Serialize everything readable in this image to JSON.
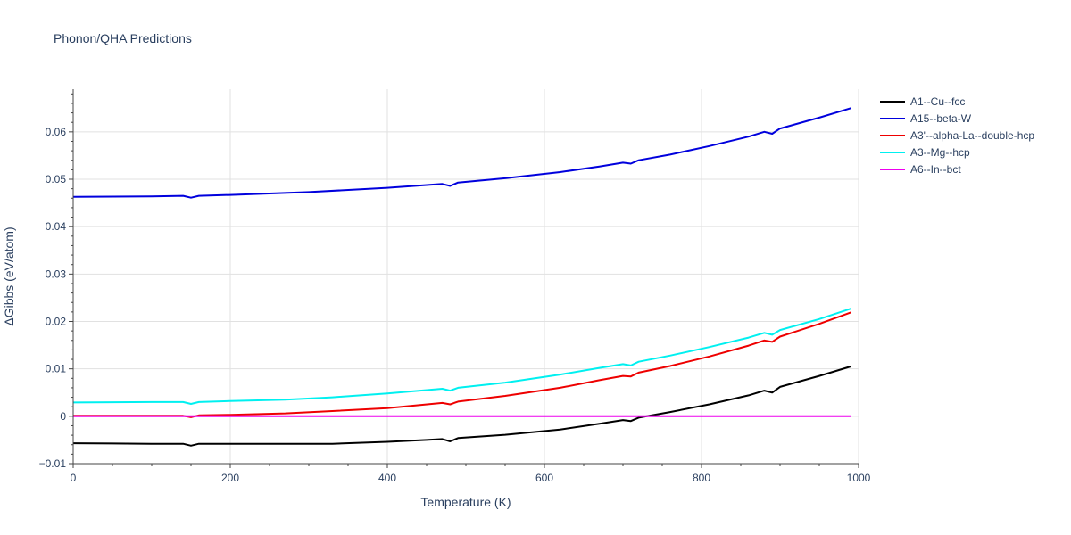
{
  "chart_data": {
    "type": "line",
    "title": "Phonon/QHA Predictions",
    "xlabel": "Temperature (K)",
    "ylabel": "ΔGibbs (eV/atom)",
    "xlim": [
      0,
      1000
    ],
    "ylim": [
      -0.01,
      0.069
    ],
    "xticks": [
      0,
      200,
      400,
      600,
      800,
      1000
    ],
    "xtick_labels": [
      "0",
      "200",
      "400",
      "600",
      "800",
      "1000"
    ],
    "yticks": [
      -0.01,
      0,
      0.01,
      0.02,
      0.03,
      0.04,
      0.05,
      0.06
    ],
    "ytick_labels": [
      "−0.01",
      "0",
      "0.01",
      "0.02",
      "0.03",
      "0.04",
      "0.05",
      "0.06"
    ],
    "grid": true,
    "legend_position": "right",
    "series": [
      {
        "name": "A1--Cu--fcc",
        "color": "#000000",
        "x": [
          0,
          100,
          140,
          150,
          160,
          200,
          250,
          330,
          400,
          450,
          470,
          480,
          490,
          550,
          620,
          670,
          700,
          710,
          720,
          760,
          810,
          860,
          880,
          890,
          900,
          950,
          990
        ],
        "y": [
          -0.0057,
          -0.0058,
          -0.0058,
          -0.0062,
          -0.0058,
          -0.0058,
          -0.0058,
          -0.0058,
          -0.0054,
          -0.005,
          -0.0048,
          -0.0053,
          -0.0046,
          -0.0039,
          -0.0028,
          -0.0016,
          -0.0008,
          -0.001,
          -0.0003,
          0.0009,
          0.0025,
          0.0044,
          0.0054,
          0.005,
          0.0062,
          0.0085,
          0.0105
        ]
      },
      {
        "name": "A15--beta-W",
        "color": "#0000dd",
        "x": [
          0,
          100,
          140,
          150,
          160,
          200,
          300,
          400,
          470,
          480,
          490,
          550,
          620,
          670,
          700,
          710,
          720,
          760,
          810,
          860,
          880,
          890,
          900,
          950,
          990
        ],
        "y": [
          0.0463,
          0.0464,
          0.0465,
          0.0461,
          0.0465,
          0.0467,
          0.0473,
          0.0482,
          0.049,
          0.0486,
          0.0493,
          0.0502,
          0.0515,
          0.0527,
          0.0535,
          0.0533,
          0.054,
          0.0552,
          0.057,
          0.059,
          0.06,
          0.0596,
          0.0607,
          0.063,
          0.065
        ]
      },
      {
        "name": "A3'--alpha-La--double-hcp",
        "color": "#ee0000",
        "x": [
          0,
          100,
          140,
          150,
          160,
          200,
          270,
          330,
          400,
          470,
          480,
          490,
          550,
          620,
          670,
          700,
          710,
          720,
          760,
          810,
          860,
          880,
          890,
          900,
          950,
          990
        ],
        "y": [
          0.0001,
          0.0001,
          0.0001,
          -0.0002,
          0.0002,
          0.0003,
          0.0006,
          0.0011,
          0.0017,
          0.0028,
          0.0025,
          0.0031,
          0.0043,
          0.006,
          0.0076,
          0.0085,
          0.0084,
          0.0092,
          0.0106,
          0.0126,
          0.0149,
          0.016,
          0.0157,
          0.0168,
          0.0195,
          0.0219
        ]
      },
      {
        "name": "A3--Mg--hcp",
        "color": "#00f0f0",
        "x": [
          0,
          100,
          140,
          150,
          160,
          200,
          270,
          330,
          400,
          470,
          480,
          490,
          550,
          620,
          670,
          700,
          710,
          720,
          760,
          810,
          860,
          880,
          890,
          900,
          950,
          990
        ],
        "y": [
          0.0029,
          0.003,
          0.003,
          0.0026,
          0.003,
          0.0032,
          0.0035,
          0.004,
          0.0048,
          0.0058,
          0.0054,
          0.006,
          0.0071,
          0.0088,
          0.0102,
          0.011,
          0.0107,
          0.0115,
          0.0128,
          0.0146,
          0.0166,
          0.0176,
          0.0172,
          0.0182,
          0.0205,
          0.0227
        ]
      },
      {
        "name": "A6--In--bct",
        "color": "#ee00ee",
        "x": [
          0,
          990
        ],
        "y": [
          0,
          0
        ]
      }
    ]
  }
}
